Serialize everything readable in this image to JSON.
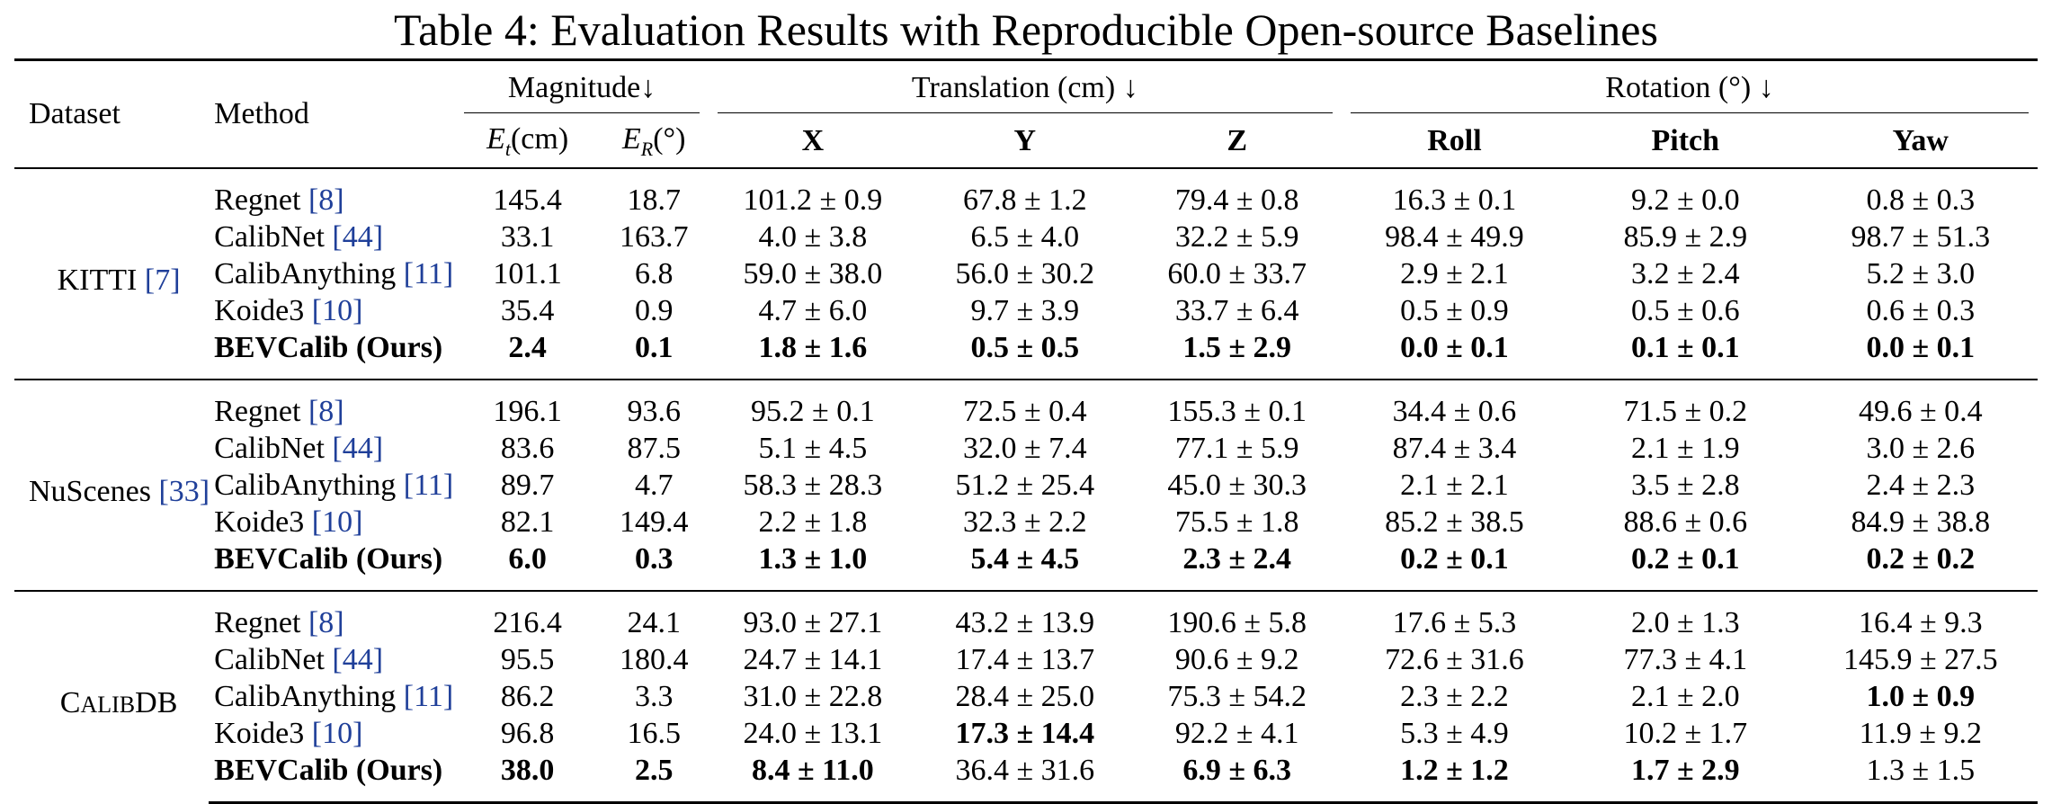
{
  "title": "Table 4: Evaluation Results with Reproducible Open-source Baselines",
  "headers": {
    "dataset": "Dataset",
    "method": "Method",
    "magnitude": "Magnitude↓",
    "translation": "Translation (cm) ↓",
    "rotation": "Rotation (°) ↓",
    "et_unit": "(cm)",
    "er_unit": "(°)",
    "x": "X",
    "y": "Y",
    "z": "Z",
    "roll": "Roll",
    "pitch": "Pitch",
    "yaw": "Yaw"
  },
  "groups": [
    {
      "dataset": "KITTI",
      "dataset_cite": "[7]",
      "rows": [
        {
          "method": "Regnet",
          "cite": "[8]",
          "values": [
            "145.4",
            "18.7",
            "101.2 ± 0.9",
            "67.8 ± 1.2",
            "79.4 ± 0.8",
            "16.3 ± 0.1",
            "9.2 ± 0.0",
            "0.8 ± 0.3"
          ],
          "bold": []
        },
        {
          "method": "CalibNet",
          "cite": "[44]",
          "values": [
            "33.1",
            "163.7",
            "4.0 ± 3.8",
            "6.5 ± 4.0",
            "32.2 ± 5.9",
            "98.4 ± 49.9",
            "85.9 ± 2.9",
            "98.7 ± 51.3"
          ],
          "bold": []
        },
        {
          "method": "CalibAnything",
          "cite": "[11]",
          "values": [
            "101.1",
            "6.8",
            "59.0 ± 38.0",
            "56.0 ± 30.2",
            "60.0 ± 33.7",
            "2.9 ± 2.1",
            "3.2 ± 2.4",
            "5.2 ± 3.0"
          ],
          "bold": []
        },
        {
          "method": "Koide3",
          "cite": "[10]",
          "values": [
            "35.4",
            "0.9",
            "4.7 ± 6.0",
            "9.7 ± 3.9",
            "33.7 ± 6.4",
            "0.5 ± 0.9",
            "0.5 ± 0.6",
            "0.6 ± 0.3"
          ],
          "bold": []
        },
        {
          "method": "BEVCalib (Ours)",
          "cite": "",
          "method_bold": true,
          "values": [
            "2.4",
            "0.1",
            "1.8 ± 1.6",
            "0.5 ± 0.5",
            "1.5 ± 2.9",
            "0.0 ± 0.1",
            "0.1 ± 0.1",
            "0.0 ± 0.1"
          ],
          "bold": [
            0,
            1,
            2,
            3,
            4,
            5,
            6,
            7
          ]
        }
      ]
    },
    {
      "dataset": "NuScenes",
      "dataset_cite": "[33]",
      "rows": [
        {
          "method": "Regnet",
          "cite": "[8]",
          "values": [
            "196.1",
            "93.6",
            "95.2 ± 0.1",
            "72.5 ± 0.4",
            "155.3 ± 0.1",
            "34.4 ± 0.6",
            "71.5 ± 0.2",
            "49.6 ± 0.4"
          ],
          "bold": []
        },
        {
          "method": "CalibNet",
          "cite": "[44]",
          "values": [
            "83.6",
            "87.5",
            "5.1 ± 4.5",
            "32.0 ± 7.4",
            "77.1 ± 5.9",
            "87.4 ± 3.4",
            "2.1 ± 1.9",
            "3.0 ± 2.6"
          ],
          "bold": []
        },
        {
          "method": "CalibAnything",
          "cite": "[11]",
          "values": [
            "89.7",
            "4.7",
            "58.3 ± 28.3",
            "51.2 ± 25.4",
            "45.0 ± 30.3",
            "2.1 ± 2.1",
            "3.5 ± 2.8",
            "2.4 ± 2.3"
          ],
          "bold": []
        },
        {
          "method": "Koide3",
          "cite": "[10]",
          "values": [
            "82.1",
            "149.4",
            "2.2 ± 1.8",
            "32.3 ± 2.2",
            "75.5 ± 1.8",
            "85.2 ± 38.5",
            "88.6 ± 0.6",
            "84.9 ± 38.8"
          ],
          "bold": []
        },
        {
          "method": "BEVCalib (Ours)",
          "cite": "",
          "method_bold": true,
          "values": [
            "6.0",
            "0.3",
            "1.3 ± 1.0",
            "5.4 ± 4.5",
            "2.3 ± 2.4",
            "0.2 ± 0.1",
            "0.2 ± 0.1",
            "0.2 ± 0.2"
          ],
          "bold": [
            0,
            1,
            2,
            3,
            4,
            5,
            6,
            7
          ]
        }
      ]
    },
    {
      "dataset": "CALIBDB",
      "dataset_cite": "",
      "smallcaps": true,
      "rows": [
        {
          "method": "Regnet",
          "cite": "[8]",
          "values": [
            "216.4",
            "24.1",
            "93.0 ± 27.1",
            "43.2 ± 13.9",
            "190.6 ± 5.8",
            "17.6 ± 5.3",
            "2.0 ± 1.3",
            "16.4 ± 9.3"
          ],
          "bold": []
        },
        {
          "method": "CalibNet",
          "cite": "[44]",
          "values": [
            "95.5",
            "180.4",
            "24.7 ± 14.1",
            "17.4 ± 13.7",
            "90.6 ± 9.2",
            "72.6 ± 31.6",
            "77.3 ± 4.1",
            "145.9 ± 27.5"
          ],
          "bold": []
        },
        {
          "method": "CalibAnything",
          "cite": "[11]",
          "values": [
            "86.2",
            "3.3",
            "31.0 ± 22.8",
            "28.4 ± 25.0",
            "75.3 ± 54.2",
            "2.3 ± 2.2",
            "2.1 ± 2.0",
            "1.0 ± 0.9"
          ],
          "bold": [
            7
          ]
        },
        {
          "method": "Koide3",
          "cite": "[10]",
          "values": [
            "96.8",
            "16.5",
            "24.0 ± 13.1",
            "17.3 ± 14.4",
            "92.2 ± 4.1",
            "5.3 ± 4.9",
            "10.2 ± 1.7",
            "11.9 ± 9.2"
          ],
          "bold": [
            3
          ]
        },
        {
          "method": "BEVCalib (Ours)",
          "cite": "",
          "method_bold": true,
          "values": [
            "38.0",
            "2.5",
            "8.4 ± 11.0",
            "36.4 ± 31.6",
            "6.9 ± 6.3",
            "1.2 ± 1.2",
            "1.7 ± 2.9",
            "1.3 ± 1.5"
          ],
          "bold": [
            0,
            1,
            2,
            4,
            5,
            6
          ]
        }
      ]
    }
  ]
}
